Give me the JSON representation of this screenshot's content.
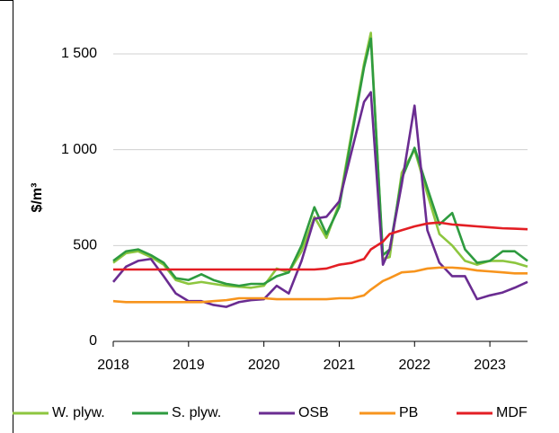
{
  "chart_data": {
    "type": "line",
    "y_label": "$/m³",
    "x": [
      2018.0,
      2018.17,
      2018.33,
      2018.5,
      2018.67,
      2018.83,
      2019.0,
      2019.17,
      2019.33,
      2019.5,
      2019.67,
      2019.83,
      2020.0,
      2020.17,
      2020.33,
      2020.5,
      2020.67,
      2020.83,
      2021.0,
      2021.17,
      2021.33,
      2021.42,
      2021.58,
      2021.67,
      2021.83,
      2022.0,
      2022.17,
      2022.33,
      2022.5,
      2022.67,
      2022.83,
      2023.0,
      2023.17,
      2023.33,
      2023.5
    ],
    "series": [
      {
        "name": "W. plyw.",
        "color": "#8dc63f",
        "values": [
          410,
          460,
          470,
          440,
          400,
          320,
          300,
          310,
          300,
          290,
          285,
          280,
          290,
          380,
          360,
          470,
          650,
          540,
          720,
          1100,
          1450,
          1610,
          430,
          440,
          880,
          1000,
          770,
          560,
          500,
          420,
          400,
          420,
          420,
          410,
          390
        ]
      },
      {
        "name": "S. plyw.",
        "color": "#2e9b3f",
        "values": [
          420,
          470,
          480,
          450,
          410,
          330,
          320,
          350,
          320,
          300,
          290,
          300,
          300,
          340,
          360,
          500,
          700,
          560,
          700,
          1080,
          1430,
          1580,
          450,
          480,
          850,
          1010,
          800,
          610,
          670,
          480,
          410,
          420,
          470,
          470,
          420
        ]
      },
      {
        "name": "OSB",
        "color": "#6a2c91",
        "values": [
          310,
          390,
          420,
          430,
          340,
          250,
          210,
          210,
          190,
          180,
          205,
          215,
          220,
          290,
          250,
          420,
          640,
          650,
          730,
          1000,
          1250,
          1300,
          400,
          480,
          820,
          1230,
          580,
          410,
          340,
          340,
          220,
          240,
          255,
          280,
          310
        ]
      },
      {
        "name": "PB",
        "color": "#f7941d",
        "values": [
          210,
          205,
          205,
          205,
          205,
          205,
          205,
          205,
          210,
          215,
          225,
          225,
          225,
          220,
          220,
          220,
          220,
          220,
          225,
          225,
          240,
          270,
          315,
          330,
          360,
          365,
          380,
          385,
          385,
          380,
          370,
          365,
          360,
          355,
          355
        ]
      },
      {
        "name": "MDF",
        "color": "#e31e24",
        "values": [
          375,
          375,
          375,
          375,
          375,
          375,
          375,
          375,
          375,
          375,
          375,
          375,
          375,
          375,
          375,
          375,
          375,
          380,
          400,
          410,
          430,
          480,
          520,
          560,
          580,
          600,
          615,
          620,
          610,
          605,
          600,
          595,
          590,
          588,
          585
        ]
      }
    ],
    "xlim": [
      2018,
      2023.5
    ],
    "xticks": [
      2018,
      2019,
      2020,
      2021,
      2022,
      2023
    ],
    "ylim": [
      0,
      1500
    ],
    "yticks": [
      0,
      {
        "value": 500,
        "label": "500"
      },
      {
        "value": 1000,
        "label": "1 000"
      },
      {
        "value": 1500,
        "label": "1 500"
      }
    ],
    "grid": true
  }
}
